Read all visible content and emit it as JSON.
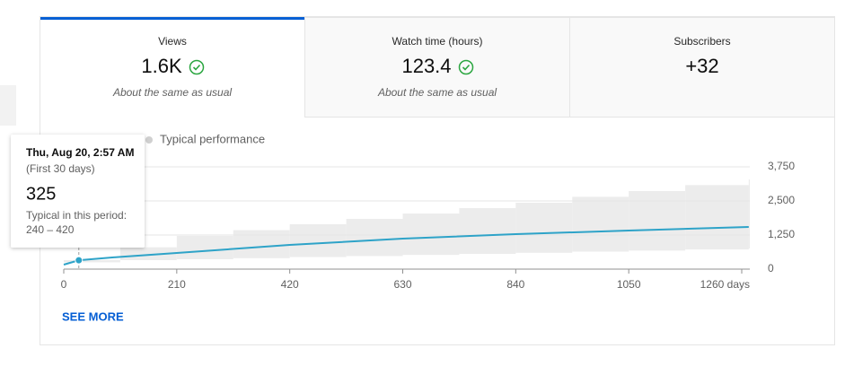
{
  "tabs": [
    {
      "label": "Views",
      "value": "1.6K",
      "note": "About the same as usual"
    },
    {
      "label": "Watch time (hours)",
      "value": "123.4",
      "note": "About the same as usual"
    },
    {
      "label": "Subscribers",
      "value": "+32"
    }
  ],
  "legend": {
    "typical": "Typical performance"
  },
  "tooltip": {
    "date": "Thu, Aug 20, 2:57 AM",
    "period": "(First 30 days)",
    "value": "325",
    "typical_label": "Typical in this period:",
    "typical_range": "240 – 420"
  },
  "chart_data": {
    "type": "line",
    "xlim": [
      0,
      1275
    ],
    "ylim": [
      0,
      3750
    ],
    "xticks": [
      0,
      210,
      420,
      630,
      840,
      1050,
      {
        "value": 1260,
        "label": "1260 days"
      }
    ],
    "yticks": [
      0,
      {
        "value": 1250,
        "label": "1,250"
      },
      {
        "value": 2500,
        "label": "2,500"
      },
      {
        "value": 3750,
        "label": "3,750"
      }
    ],
    "grid": true,
    "series": [
      {
        "name": "Views",
        "color": "#2ea3c8",
        "x": [
          0,
          28,
          105,
          210,
          420,
          630,
          840,
          1050,
          1273
        ],
        "values": [
          165,
          325,
          450,
          592,
          888,
          1118,
          1283,
          1414,
          1546
        ]
      }
    ],
    "band": {
      "color": "#ececec",
      "x": [
        0,
        105,
        210,
        315,
        420,
        525,
        630,
        735,
        840,
        945,
        1050,
        1155,
        1273
      ],
      "upper": [
        330,
        800,
        1217,
        1430,
        1645,
        1840,
        2039,
        2240,
        2434,
        2650,
        2862,
        3080,
        3289
      ],
      "lower": [
        250,
        330,
        362,
        400,
        440,
        480,
        520,
        560,
        600,
        640,
        680,
        720,
        757
      ]
    }
  },
  "actions": {
    "see_more": "SEE MORE"
  }
}
